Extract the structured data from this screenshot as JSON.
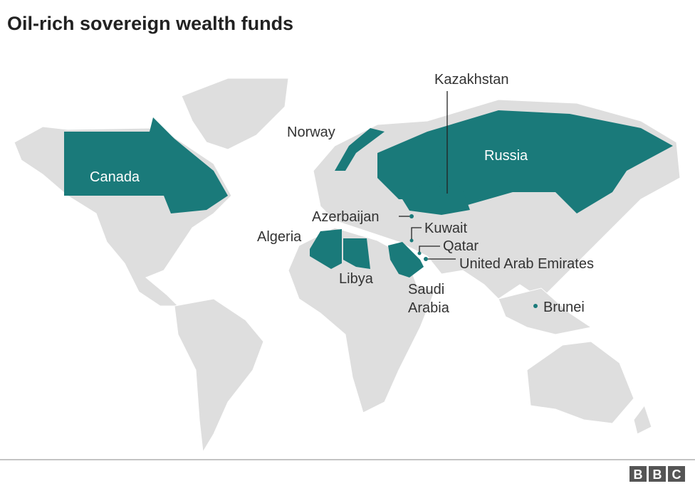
{
  "title": "Oil-rich sovereign wealth funds",
  "labels": [
    "Kazakhstan",
    "Norway",
    "Russia",
    "Canada",
    "Azerbaijan",
    "Kuwait",
    "Algeria",
    "Qatar",
    "United Arab Emirates",
    "Libya",
    "Saudi Arabia",
    "Brunei"
  ],
  "logo": [
    "B",
    "B",
    "C"
  ]
}
